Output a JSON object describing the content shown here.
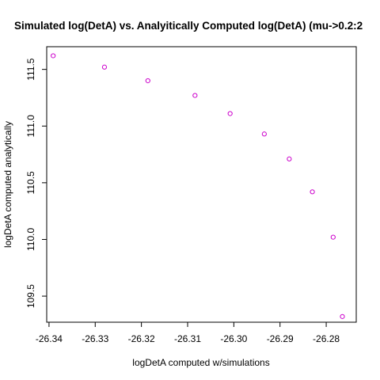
{
  "chart_data": {
    "type": "scatter",
    "title": "Simulated log(DetA) vs. Analyitically Computed log(DetA) (mu->0.2:2",
    "xlabel": "logDetA computed w/simulations",
    "ylabel": "logDetA computed analytically",
    "xlim": [
      -26.3405,
      -26.2735
    ],
    "ylim": [
      109.27,
      111.7
    ],
    "xticks": [
      -26.34,
      -26.33,
      -26.32,
      -26.31,
      -26.3,
      -26.29,
      -26.28
    ],
    "xtick_labels": [
      "-26.34",
      "-26.33",
      "-26.32",
      "-26.31",
      "-26.30",
      "-26.29",
      "-26.28"
    ],
    "yticks": [
      109.5,
      110.0,
      110.5,
      111.0,
      111.5
    ],
    "ytick_labels": [
      "109.5",
      "110.0",
      "110.5",
      "111.0",
      "111.5"
    ],
    "marker_color": "#cc00cc",
    "points": [
      {
        "x": -26.3391,
        "y": 111.62
      },
      {
        "x": -26.328,
        "y": 111.52
      },
      {
        "x": -26.3186,
        "y": 111.4
      },
      {
        "x": -26.3084,
        "y": 111.27
      },
      {
        "x": -26.3008,
        "y": 111.11
      },
      {
        "x": -26.2934,
        "y": 110.93
      },
      {
        "x": -26.288,
        "y": 110.71
      },
      {
        "x": -26.283,
        "y": 110.42
      },
      {
        "x": -26.2785,
        "y": 110.02
      },
      {
        "x": -26.2765,
        "y": 109.32
      }
    ],
    "grid": false,
    "legend": "none"
  }
}
